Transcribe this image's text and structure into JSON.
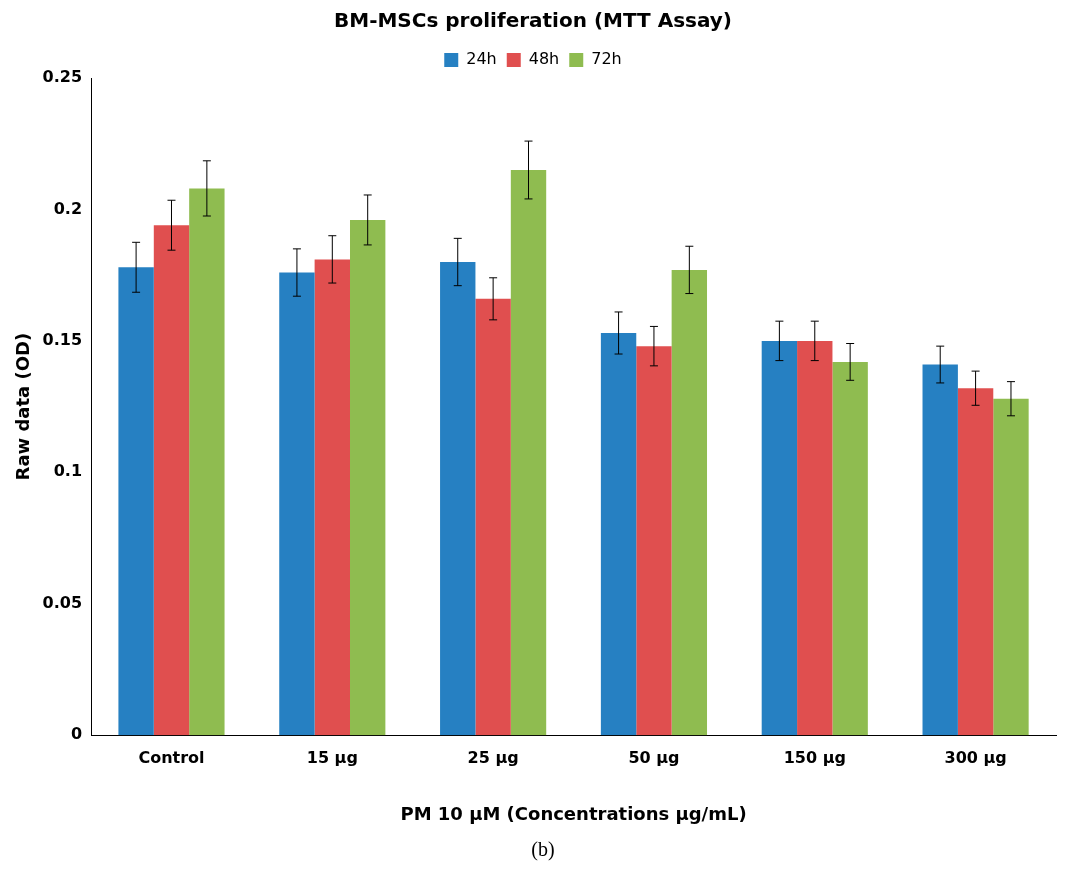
{
  "chart_data": {
    "type": "bar",
    "title": "BM-MSCs proliferation (MTT Assay)",
    "xlabel": "PM 10 μM (Concentrations μg/mL)",
    "ylabel": "Raw data (OD)",
    "categories": [
      "Control",
      "15 μg",
      "25 μg",
      "50 μg",
      "150 μg",
      "300 μg"
    ],
    "series": [
      {
        "name": "24h",
        "color": "#2680c2",
        "values": [
          0.178,
          0.176,
          0.18,
          0.153,
          0.15,
          0.141
        ],
        "errors": [
          0.0095,
          0.009,
          0.009,
          0.008,
          0.0075,
          0.007
        ]
      },
      {
        "name": "48h",
        "color": "#e04f4f",
        "values": [
          0.194,
          0.181,
          0.166,
          0.148,
          0.15,
          0.132
        ],
        "errors": [
          0.0095,
          0.009,
          0.008,
          0.0075,
          0.0075,
          0.0065
        ]
      },
      {
        "name": "72h",
        "color": "#8fbc50",
        "values": [
          0.208,
          0.196,
          0.215,
          0.177,
          0.142,
          0.128
        ],
        "errors": [
          0.0105,
          0.0095,
          0.011,
          0.009,
          0.007,
          0.0065
        ]
      }
    ],
    "ylim": [
      0,
      0.25
    ],
    "yticks": [
      0,
      0.05,
      0.1,
      0.15,
      0.2,
      0.25
    ],
    "grid": false,
    "legend": "top",
    "annotations": [
      "(b)"
    ]
  }
}
